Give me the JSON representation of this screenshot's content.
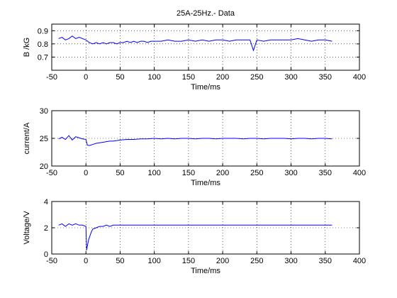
{
  "figure": {
    "background": "#ffffff",
    "line_color": "#0000ff"
  },
  "chart_data": [
    {
      "type": "line",
      "title": "25A-25Hz.- Data",
      "xlabel": "Time/ms",
      "ylabel": "B /kG",
      "xlim": [
        -50,
        400
      ],
      "ylim": [
        0.6,
        0.95
      ],
      "grid": true,
      "x_ticks": [
        -50,
        0,
        50,
        100,
        150,
        200,
        250,
        300,
        350,
        400
      ],
      "y_ticks": [
        0.7,
        0.8,
        0.9
      ],
      "x_tick_labels": [
        "-50",
        "0",
        "50",
        "100",
        "150",
        "200",
        "250",
        "300",
        "350",
        "400"
      ],
      "y_tick_labels": [
        "0.7",
        "0.8",
        "0.9"
      ],
      "series": [
        {
          "x": [
            -40,
            -35,
            -30,
            -25,
            -20,
            -15,
            -10,
            -5,
            0,
            5,
            10,
            15,
            20,
            25,
            30,
            35,
            40,
            45,
            50,
            55,
            60,
            65,
            70,
            75,
            80,
            85,
            90,
            95,
            100,
            110,
            120,
            130,
            140,
            150,
            160,
            170,
            180,
            190,
            200,
            210,
            220,
            230,
            240,
            245,
            250,
            260,
            270,
            280,
            290,
            300,
            310,
            320,
            330,
            340,
            350,
            360
          ],
          "y": [
            0.84,
            0.85,
            0.83,
            0.84,
            0.86,
            0.84,
            0.85,
            0.84,
            0.83,
            0.81,
            0.8,
            0.81,
            0.8,
            0.81,
            0.8,
            0.81,
            0.81,
            0.8,
            0.81,
            0.81,
            0.82,
            0.81,
            0.82,
            0.81,
            0.82,
            0.82,
            0.81,
            0.82,
            0.82,
            0.82,
            0.83,
            0.82,
            0.82,
            0.83,
            0.82,
            0.83,
            0.82,
            0.83,
            0.83,
            0.82,
            0.83,
            0.83,
            0.83,
            0.75,
            0.83,
            0.82,
            0.83,
            0.83,
            0.83,
            0.83,
            0.84,
            0.83,
            0.82,
            0.83,
            0.83,
            0.82
          ]
        }
      ]
    },
    {
      "type": "line",
      "title": "",
      "xlabel": "Time/ms",
      "ylabel": "current/A",
      "xlim": [
        -50,
        400
      ],
      "ylim": [
        20,
        30
      ],
      "grid": true,
      "x_ticks": [
        -50,
        0,
        50,
        100,
        150,
        200,
        250,
        300,
        350,
        400
      ],
      "y_ticks": [
        20,
        25,
        30
      ],
      "x_tick_labels": [
        "-50",
        "0",
        "50",
        "100",
        "150",
        "200",
        "250",
        "300",
        "350",
        "400"
      ],
      "y_tick_labels": [
        "20",
        "25",
        "30"
      ],
      "series": [
        {
          "x": [
            -40,
            -35,
            -30,
            -25,
            -20,
            -15,
            -10,
            -5,
            0,
            2,
            5,
            10,
            15,
            20,
            25,
            30,
            35,
            40,
            45,
            50,
            60,
            70,
            80,
            90,
            100,
            110,
            120,
            130,
            140,
            150,
            160,
            170,
            180,
            190,
            200,
            210,
            220,
            230,
            240,
            250,
            260,
            270,
            280,
            290,
            300,
            310,
            320,
            330,
            340,
            350,
            360
          ],
          "y": [
            24.9,
            25.2,
            24.8,
            25.5,
            24.7,
            25.3,
            25.1,
            24.9,
            24.8,
            23.8,
            23.7,
            23.9,
            24.1,
            24.2,
            24.3,
            24.4,
            24.5,
            24.5,
            24.6,
            24.7,
            24.8,
            24.8,
            24.9,
            24.9,
            25.0,
            24.9,
            25.0,
            24.9,
            25.0,
            25.0,
            24.9,
            25.0,
            25.0,
            24.9,
            25.0,
            25.0,
            25.0,
            24.9,
            25.0,
            25.0,
            24.9,
            25.0,
            25.0,
            25.0,
            24.9,
            25.0,
            25.0,
            24.9,
            25.0,
            25.0,
            24.9
          ]
        }
      ]
    },
    {
      "type": "line",
      "title": "",
      "xlabel": "Time/ms",
      "ylabel": "Voltage/V",
      "xlim": [
        -50,
        400
      ],
      "ylim": [
        0,
        4
      ],
      "grid": true,
      "x_ticks": [
        -50,
        0,
        50,
        100,
        150,
        200,
        250,
        300,
        350,
        400
      ],
      "y_ticks": [
        0,
        2,
        4
      ],
      "x_tick_labels": [
        "-50",
        "0",
        "50",
        "100",
        "150",
        "200",
        "250",
        "300",
        "350",
        "400"
      ],
      "y_tick_labels": [
        "0",
        "2",
        "4"
      ],
      "series": [
        {
          "x": [
            -40,
            -35,
            -30,
            -25,
            -20,
            -15,
            -10,
            -5,
            0,
            1,
            2,
            4,
            6,
            8,
            10,
            15,
            20,
            25,
            30,
            35,
            40,
            45,
            50,
            60,
            70,
            80,
            90,
            100,
            110,
            120,
            130,
            140,
            150,
            160,
            170,
            180,
            190,
            200,
            210,
            220,
            230,
            240,
            250,
            260,
            270,
            280,
            290,
            300,
            310,
            320,
            330,
            340,
            350,
            360
          ],
          "y": [
            2.2,
            2.3,
            2.1,
            2.3,
            2.2,
            2.3,
            2.2,
            2.2,
            2.1,
            0.3,
            0.6,
            1.1,
            1.4,
            1.7,
            1.9,
            2.0,
            2.1,
            2.1,
            2.2,
            2.1,
            2.2,
            2.2,
            2.2,
            2.2,
            2.2,
            2.2,
            2.2,
            2.2,
            2.2,
            2.2,
            2.2,
            2.2,
            2.2,
            2.2,
            2.2,
            2.2,
            2.2,
            2.2,
            2.2,
            2.2,
            2.2,
            2.2,
            2.2,
            2.2,
            2.2,
            2.2,
            2.2,
            2.2,
            2.2,
            2.2,
            2.2,
            2.2,
            2.2,
            2.2
          ]
        }
      ]
    }
  ]
}
